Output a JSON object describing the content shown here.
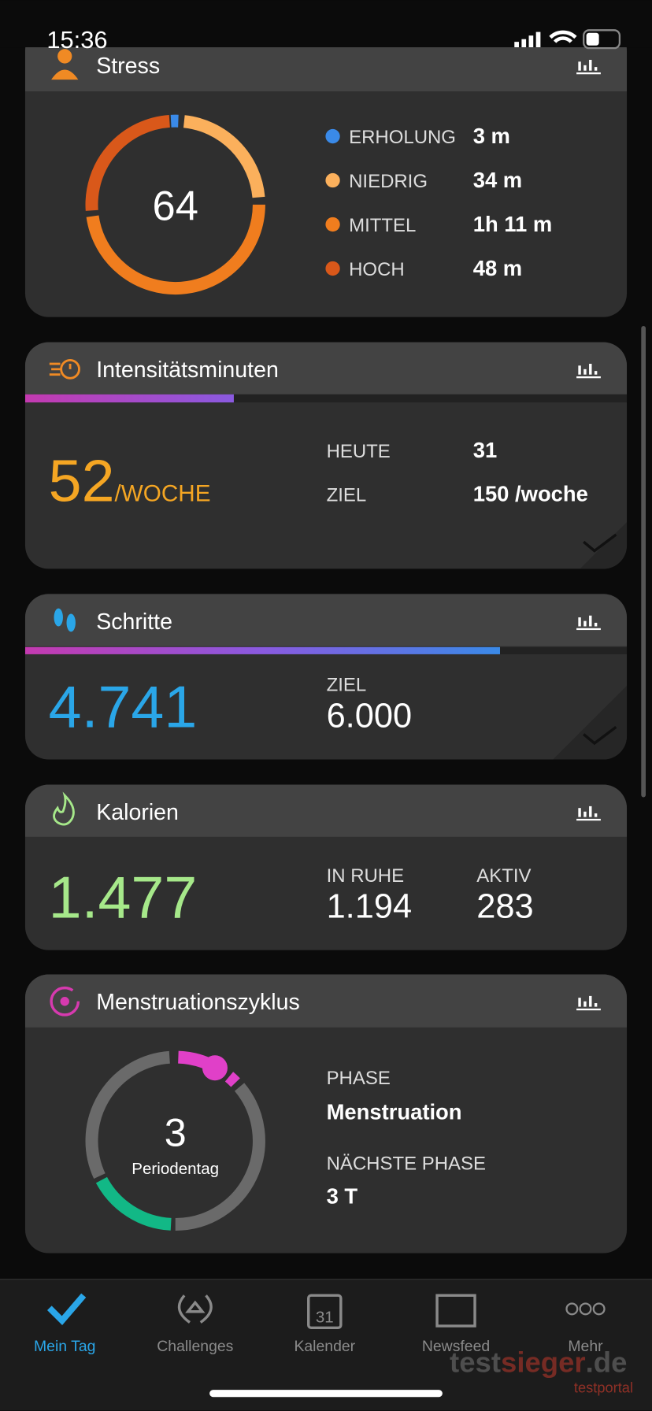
{
  "status_bar": {
    "time": "15:36"
  },
  "cards": [
    {
      "title": "Stress",
      "score": "64",
      "legend": [
        {
          "label": "ERHOLUNG",
          "value": "3 m"
        },
        {
          "label": "NIEDRIG",
          "value": "34 m"
        },
        {
          "label": "MITTEL",
          "value": "1h 11 m"
        },
        {
          "label": "HOCH",
          "value": "48 m"
        }
      ]
    },
    {
      "title": "Intensitätsminuten",
      "value": "52",
      "unit": "/WOCHE",
      "rows": [
        {
          "label": "HEUTE",
          "value": "31"
        },
        {
          "label": "ZIEL",
          "value": "150 /woche"
        }
      ]
    },
    {
      "title": "Schritte",
      "value": "4.741",
      "goal_label": "ZIEL",
      "goal": "6.000"
    },
    {
      "title": "Kalorien",
      "value": "1.477",
      "rows": [
        {
          "label": "IN RUHE",
          "value": "1.194"
        },
        {
          "label": "AKTIV",
          "value": "283"
        }
      ]
    },
    {
      "title": "Menstruationszyklus",
      "day": "3",
      "day_label": "Periodentag",
      "rows": [
        {
          "label": "PHASE",
          "value": "Menstruation"
        },
        {
          "label": "NÄCHSTE PHASE",
          "value": "3 T"
        }
      ]
    }
  ],
  "calendar_icon_day": "31",
  "tab_bar": [
    "Mein Tag",
    "Challenges",
    "Kalender",
    "Newsfeed",
    "Mehr"
  ],
  "watermark": {
    "parts": [
      "test",
      "sieger",
      ".de"
    ],
    "sub": "testportal"
  }
}
